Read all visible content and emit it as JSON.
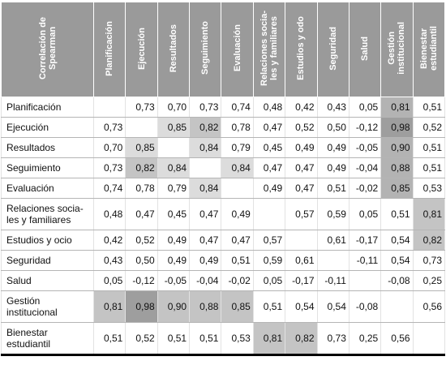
{
  "table": {
    "corner": "Correlación de\nSpearman",
    "columns": [
      "Planificación",
      "Ejecución",
      "Resultados",
      "Seguimiento",
      "Evaluación",
      "Relaciones socia-\nles y familiares",
      "Estudios y odo",
      "Seguridad",
      "Salud",
      "Gestión\ninstitucional",
      "Bienestar\nestudiantil"
    ],
    "rows": [
      {
        "label": "Planificación",
        "cells": [
          null,
          "0,73",
          "0,70",
          "0,73",
          "0,74",
          "0,48",
          "0,42",
          "0,43",
          "0,05",
          "0,81",
          "0,51"
        ]
      },
      {
        "label": "Ejecución",
        "cells": [
          "0,73",
          null,
          "0,85",
          "0,82",
          "0,78",
          "0,47",
          "0,52",
          "0,50",
          "-0,12",
          "0,98",
          "0,52"
        ]
      },
      {
        "label": "Resultados",
        "cells": [
          "0,70",
          "0,85",
          null,
          "0,84",
          "0,79",
          "0,45",
          "0,49",
          "0,49",
          "-0,05",
          "0,90",
          "0,51"
        ]
      },
      {
        "label": "Seguimiento",
        "cells": [
          "0,73",
          "0,82",
          "0,84",
          null,
          "0,84",
          "0,47",
          "0,47",
          "0,49",
          "-0,04",
          "0,88",
          "0,51"
        ]
      },
      {
        "label": "Evaluación",
        "cells": [
          "0,74",
          "0,78",
          "0,79",
          "0,84",
          null,
          "0,49",
          "0,47",
          "0,51",
          "-0,02",
          "0,85",
          "0,53"
        ]
      },
      {
        "label": "Relaciones socia-\nles y familiares",
        "cells": [
          "0,48",
          "0,47",
          "0,45",
          "0,47",
          "0,49",
          null,
          "0,57",
          "0,59",
          "0,05",
          "0,51",
          "0,81"
        ]
      },
      {
        "label": "Estudios y ocio",
        "cells": [
          "0,42",
          "0,52",
          "0,49",
          "0,47",
          "0,47",
          "0,57",
          null,
          "0,61",
          "-0,17",
          "0,54",
          "0,82"
        ]
      },
      {
        "label": "Seguridad",
        "cells": [
          "0,43",
          "0,50",
          "0,49",
          "0,49",
          "0,51",
          "0,59",
          "0,61",
          null,
          "-0,11",
          "0,54",
          "0,73"
        ]
      },
      {
        "label": "Salud",
        "cells": [
          "0,05",
          "-0,12",
          "-0,05",
          "-0,04",
          "-0,02",
          "0,05",
          "-0,17",
          "-0,11",
          null,
          "-0,08",
          "0,25"
        ]
      },
      {
        "label": "Gestión\ninstitucional",
        "cells": [
          "0,81",
          "0,98",
          "0,90",
          "0,88",
          "0,85",
          "0,51",
          "0,54",
          "0,54",
          "-0,08",
          null,
          "0,56"
        ]
      },
      {
        "label": "Bienestar\nestudiantil",
        "cells": [
          "0,51",
          "0,52",
          "0,51",
          "0,51",
          "0,53",
          "0,81",
          "0,82",
          "0,73",
          "0,25",
          "0,56",
          null
        ]
      }
    ],
    "shaded": [
      {
        "row": 0,
        "col": 9,
        "color": "#b3b3b3"
      },
      {
        "row": 1,
        "col": 2,
        "color": "#dcdcdc"
      },
      {
        "row": 1,
        "col": 3,
        "color": "#c4c4c4"
      },
      {
        "row": 1,
        "col": 9,
        "color": "#9e9e9e"
      },
      {
        "row": 2,
        "col": 1,
        "color": "#dcdcdc"
      },
      {
        "row": 2,
        "col": 3,
        "color": "#dcdcdc"
      },
      {
        "row": 2,
        "col": 9,
        "color": "#b3b3b3"
      },
      {
        "row": 3,
        "col": 1,
        "color": "#c4c4c4"
      },
      {
        "row": 3,
        "col": 2,
        "color": "#dcdcdc"
      },
      {
        "row": 3,
        "col": 4,
        "color": "#dcdcdc"
      },
      {
        "row": 3,
        "col": 9,
        "color": "#b3b3b3"
      },
      {
        "row": 4,
        "col": 3,
        "color": "#dcdcdc"
      },
      {
        "row": 4,
        "col": 9,
        "color": "#b3b3b3"
      },
      {
        "row": 5,
        "col": 10,
        "color": "#c4c4c4"
      },
      {
        "row": 6,
        "col": 10,
        "color": "#c4c4c4"
      },
      {
        "row": 9,
        "col": 0,
        "color": "#c4c4c4"
      },
      {
        "row": 9,
        "col": 1,
        "color": "#9e9e9e"
      },
      {
        "row": 9,
        "col": 2,
        "color": "#c4c4c4"
      },
      {
        "row": 9,
        "col": 3,
        "color": "#c4c4c4"
      },
      {
        "row": 9,
        "col": 4,
        "color": "#c4c4c4"
      },
      {
        "row": 10,
        "col": 5,
        "color": "#c4c4c4"
      },
      {
        "row": 10,
        "col": 6,
        "color": "#c4c4c4"
      }
    ]
  }
}
